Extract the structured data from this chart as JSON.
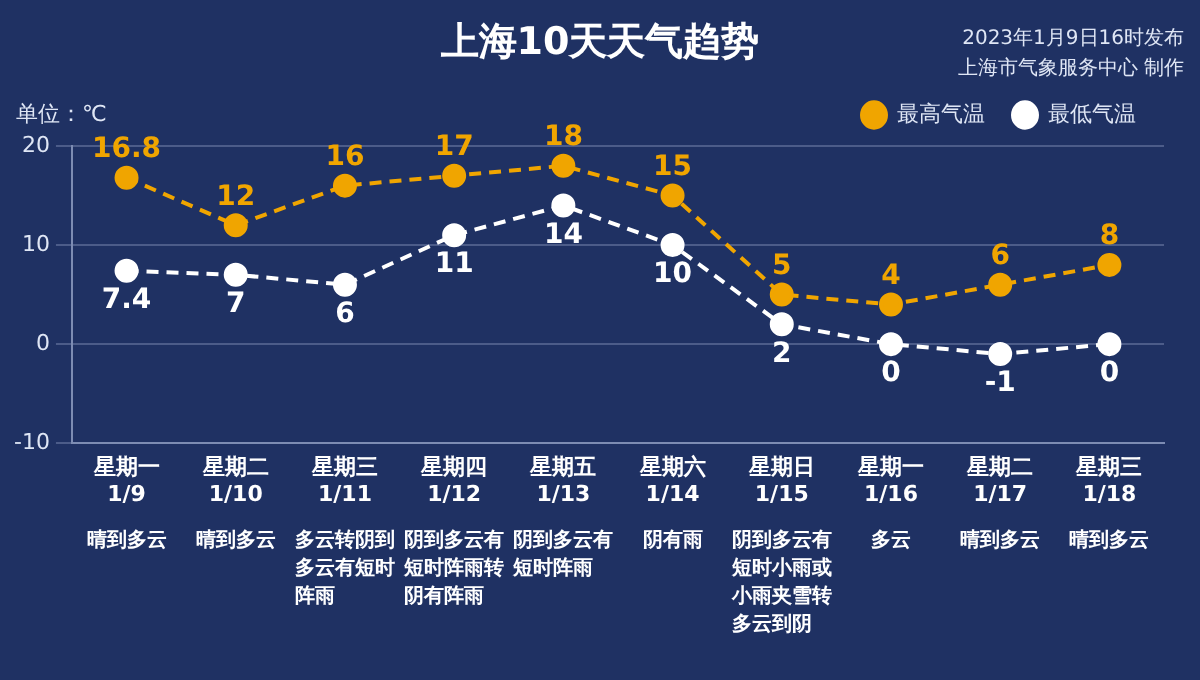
{
  "chart_data": {
    "type": "line",
    "title": "上海10天天气趋势",
    "ylabel": "单位：℃",
    "categories": [
      "星期一 1/9",
      "星期二 1/10",
      "星期三 1/11",
      "星期四 1/12",
      "星期五 1/13",
      "星期六 1/14",
      "星期日 1/15",
      "星期一 1/16",
      "星期二 1/17",
      "星期三 1/18"
    ],
    "series": [
      {
        "name": "最高气温",
        "color": "#f0a500",
        "values": [
          16.8,
          12,
          16,
          17,
          18,
          15,
          5,
          4,
          6,
          8
        ]
      },
      {
        "name": "最低气温",
        "color": "#ffffff",
        "values": [
          7.4,
          7,
          6,
          11,
          14,
          10,
          2,
          0,
          -1,
          0
        ]
      }
    ],
    "ylim": [
      -10,
      20
    ],
    "yticks": [
      -10,
      0,
      10,
      20
    ],
    "grid": "y",
    "legend": "top",
    "marker": "circle",
    "line_style": "dashed",
    "data_labels": true,
    "annotations": [
      "晴到多云",
      "晴到多云",
      "多云转阴到多云有短时阵雨",
      "阴到多云有短时阵雨转阴有阵雨",
      "阴到多云有短时阵雨",
      "阴有雨",
      "阴到多云有短时小雨或小雨夹雪转多云到阴",
      "多云",
      "晴到多云",
      "晴到多云",
      "2023年1月9日16时发布",
      "上海市气象服务中心 制作"
    ]
  }
}
